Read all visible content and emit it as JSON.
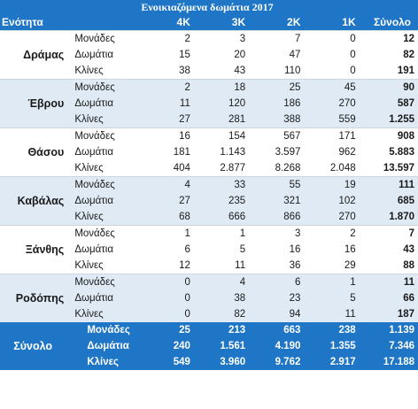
{
  "title": "Ενοικιαζόμενα δωμάτια 2017",
  "headers": [
    "Ενότητα",
    "",
    "4K",
    "3K",
    "2K",
    "1K",
    "Σύνολο"
  ],
  "groups": [
    {
      "unit": "Δράμας",
      "shade": false,
      "rows": [
        {
          "cat": "Μονάδες",
          "v": [
            "2",
            "3",
            "7",
            "0"
          ],
          "total": "12"
        },
        {
          "cat": "Δωμάτια",
          "v": [
            "15",
            "20",
            "47",
            "0"
          ],
          "total": "82"
        },
        {
          "cat": "Κλίνες",
          "v": [
            "38",
            "43",
            "110",
            "0"
          ],
          "total": "191"
        }
      ]
    },
    {
      "unit": "Έβρου",
      "shade": true,
      "rows": [
        {
          "cat": "Μονάδες",
          "v": [
            "2",
            "18",
            "25",
            "45"
          ],
          "total": "90"
        },
        {
          "cat": "Δωμάτια",
          "v": [
            "11",
            "120",
            "186",
            "270"
          ],
          "total": "587"
        },
        {
          "cat": "Κλίνες",
          "v": [
            "27",
            "281",
            "388",
            "559"
          ],
          "total": "1.255"
        }
      ]
    },
    {
      "unit": "Θάσου",
      "shade": false,
      "rows": [
        {
          "cat": "Μονάδες",
          "v": [
            "16",
            "154",
            "567",
            "171"
          ],
          "total": "908"
        },
        {
          "cat": "Δωμάτια",
          "v": [
            "181",
            "1.143",
            "3.597",
            "962"
          ],
          "total": "5.883"
        },
        {
          "cat": "Κλίνες",
          "v": [
            "404",
            "2.877",
            "8.268",
            "2.048"
          ],
          "total": "13.597"
        }
      ]
    },
    {
      "unit": "Καβάλας",
      "shade": true,
      "rows": [
        {
          "cat": "Μονάδες",
          "v": [
            "4",
            "33",
            "55",
            "19"
          ],
          "total": "111"
        },
        {
          "cat": "Δωμάτια",
          "v": [
            "27",
            "235",
            "321",
            "102"
          ],
          "total": "685"
        },
        {
          "cat": "Κλίνες",
          "v": [
            "68",
            "666",
            "866",
            "270"
          ],
          "total": "1.870"
        }
      ]
    },
    {
      "unit": "Ξάνθης",
      "shade": false,
      "rows": [
        {
          "cat": "Μονάδες",
          "v": [
            "1",
            "1",
            "3",
            "2"
          ],
          "total": "7"
        },
        {
          "cat": "Δωμάτια",
          "v": [
            "6",
            "5",
            "16",
            "16"
          ],
          "total": "43"
        },
        {
          "cat": "Κλίνες",
          "v": [
            "12",
            "11",
            "36",
            "29"
          ],
          "total": "88"
        }
      ]
    },
    {
      "unit": "Ροδόπης",
      "shade": true,
      "rows": [
        {
          "cat": "Μονάδες",
          "v": [
            "0",
            "4",
            "6",
            "1"
          ],
          "total": "11"
        },
        {
          "cat": "Δωμάτια",
          "v": [
            "0",
            "38",
            "23",
            "5"
          ],
          "total": "66"
        },
        {
          "cat": "Κλίνες",
          "v": [
            "0",
            "82",
            "94",
            "11"
          ],
          "total": "187"
        }
      ]
    },
    {
      "unit": "Σύνολο",
      "shade": false,
      "total_group": true,
      "rows": [
        {
          "cat": "Μονάδες",
          "v": [
            "25",
            "213",
            "663",
            "238"
          ],
          "total": "1.139"
        },
        {
          "cat": "Δωμάτια",
          "v": [
            "240",
            "1.561",
            "4.190",
            "1.355"
          ],
          "total": "7.346"
        },
        {
          "cat": "Κλίνες",
          "v": [
            "549",
            "3.960",
            "9.762",
            "2.917"
          ],
          "total": "17.188"
        }
      ]
    }
  ]
}
